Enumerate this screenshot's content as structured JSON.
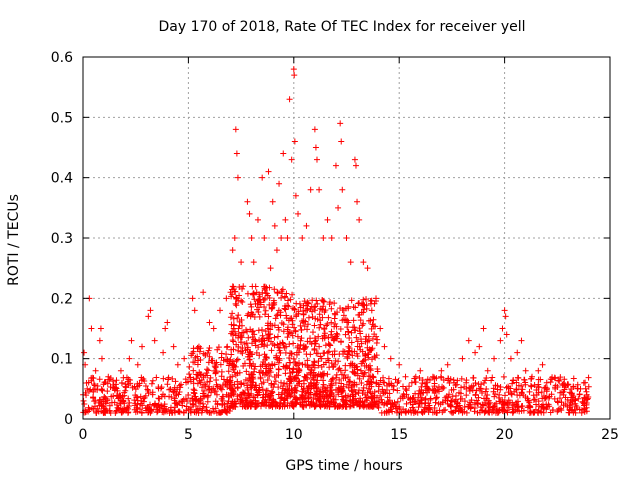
{
  "chart_data": {
    "type": "scatter",
    "title": "Day 170 of 2018, Rate Of TEC Index for receiver yell",
    "xlabel": "GPS time / hours",
    "ylabel": "ROTI / TECUs",
    "xlim": [
      0,
      25
    ],
    "ylim": [
      0,
      0.6
    ],
    "xticks": [
      0,
      5,
      10,
      15,
      20,
      25
    ],
    "xtick_labels": [
      "0",
      "5",
      "10",
      "15",
      "20",
      "25"
    ],
    "yticks": [
      0,
      0.1,
      0.2,
      0.3,
      0.4,
      0.5,
      0.6
    ],
    "ytick_labels": [
      "0",
      "0.1",
      "0.2",
      "0.3",
      "0.4",
      "0.5",
      "0.6"
    ],
    "grid": true,
    "marker": "plus",
    "series": [
      {
        "name": "ROTI",
        "color": "#ff0000",
        "points": [
          [
            0.05,
            0.11
          ],
          [
            0.1,
            0.09
          ],
          [
            0.2,
            0.05
          ],
          [
            0.3,
            0.2
          ],
          [
            0.4,
            0.15
          ],
          [
            0.6,
            0.08
          ],
          [
            0.8,
            0.13
          ],
          [
            0.85,
            0.15
          ],
          [
            0.9,
            0.1
          ],
          [
            1.2,
            0.07
          ],
          [
            1.5,
            0.05
          ],
          [
            1.8,
            0.08
          ],
          [
            2.2,
            0.1
          ],
          [
            2.3,
            0.13
          ],
          [
            2.6,
            0.09
          ],
          [
            2.8,
            0.12
          ],
          [
            3.1,
            0.17
          ],
          [
            3.2,
            0.18
          ],
          [
            3.4,
            0.13
          ],
          [
            3.8,
            0.11
          ],
          [
            3.9,
            0.15
          ],
          [
            4.0,
            0.16
          ],
          [
            4.3,
            0.12
          ],
          [
            4.5,
            0.09
          ],
          [
            4.8,
            0.1
          ],
          [
            5.2,
            0.2
          ],
          [
            5.3,
            0.18
          ],
          [
            5.5,
            0.12
          ],
          [
            5.7,
            0.21
          ],
          [
            6.0,
            0.16
          ],
          [
            6.2,
            0.15
          ],
          [
            6.5,
            0.18
          ],
          [
            6.8,
            0.2
          ],
          [
            7.0,
            0.21
          ],
          [
            7.1,
            0.28
          ],
          [
            7.2,
            0.3
          ],
          [
            7.25,
            0.48
          ],
          [
            7.3,
            0.44
          ],
          [
            7.35,
            0.4
          ],
          [
            7.5,
            0.26
          ],
          [
            7.6,
            0.22
          ],
          [
            7.8,
            0.36
          ],
          [
            7.9,
            0.34
          ],
          [
            8.0,
            0.3
          ],
          [
            8.1,
            0.26
          ],
          [
            8.3,
            0.33
          ],
          [
            8.5,
            0.4
          ],
          [
            8.6,
            0.3
          ],
          [
            8.8,
            0.41
          ],
          [
            8.9,
            0.25
          ],
          [
            9.0,
            0.36
          ],
          [
            9.1,
            0.32
          ],
          [
            9.2,
            0.28
          ],
          [
            9.3,
            0.39
          ],
          [
            9.4,
            0.3
          ],
          [
            9.5,
            0.44
          ],
          [
            9.6,
            0.33
          ],
          [
            9.7,
            0.3
          ],
          [
            9.8,
            0.53
          ],
          [
            9.9,
            0.43
          ],
          [
            10.0,
            0.58
          ],
          [
            10.02,
            0.57
          ],
          [
            10.05,
            0.46
          ],
          [
            10.1,
            0.37
          ],
          [
            10.2,
            0.34
          ],
          [
            10.4,
            0.3
          ],
          [
            10.6,
            0.32
          ],
          [
            10.8,
            0.38
          ],
          [
            11.0,
            0.48
          ],
          [
            11.05,
            0.45
          ],
          [
            11.1,
            0.43
          ],
          [
            11.2,
            0.38
          ],
          [
            11.4,
            0.3
          ],
          [
            11.6,
            0.33
          ],
          [
            11.8,
            0.3
          ],
          [
            12.0,
            0.42
          ],
          [
            12.1,
            0.35
          ],
          [
            12.2,
            0.49
          ],
          [
            12.25,
            0.46
          ],
          [
            12.3,
            0.38
          ],
          [
            12.5,
            0.3
          ],
          [
            12.7,
            0.26
          ],
          [
            12.9,
            0.43
          ],
          [
            12.95,
            0.42
          ],
          [
            13.0,
            0.36
          ],
          [
            13.1,
            0.33
          ],
          [
            13.3,
            0.26
          ],
          [
            13.5,
            0.25
          ],
          [
            13.7,
            0.18
          ],
          [
            13.9,
            0.2
          ],
          [
            14.1,
            0.15
          ],
          [
            14.3,
            0.12
          ],
          [
            14.6,
            0.1
          ],
          [
            15.0,
            0.09
          ],
          [
            15.3,
            0.07
          ],
          [
            15.6,
            0.06
          ],
          [
            16.0,
            0.08
          ],
          [
            16.3,
            0.06
          ],
          [
            16.6,
            0.07
          ],
          [
            17.0,
            0.08
          ],
          [
            17.3,
            0.09
          ],
          [
            17.6,
            0.06
          ],
          [
            18.0,
            0.1
          ],
          [
            18.3,
            0.13
          ],
          [
            18.6,
            0.11
          ],
          [
            18.8,
            0.12
          ],
          [
            19.0,
            0.15
          ],
          [
            19.2,
            0.08
          ],
          [
            19.5,
            0.1
          ],
          [
            19.8,
            0.13
          ],
          [
            19.9,
            0.15
          ],
          [
            20.0,
            0.18
          ],
          [
            20.05,
            0.17
          ],
          [
            20.1,
            0.14
          ],
          [
            20.3,
            0.1
          ],
          [
            20.6,
            0.11
          ],
          [
            20.8,
            0.13
          ],
          [
            21.0,
            0.08
          ],
          [
            21.3,
            0.07
          ],
          [
            21.6,
            0.08
          ],
          [
            21.8,
            0.09
          ],
          [
            22.0,
            0.06
          ],
          [
            22.4,
            0.05
          ],
          [
            22.8,
            0.04
          ],
          [
            23.2,
            0.04
          ],
          [
            23.6,
            0.05
          ],
          [
            23.9,
            0.04
          ]
        ]
      }
    ],
    "dense_band": [
      {
        "x0": 0.0,
        "x1": 5.0,
        "lo": 0.01,
        "hi": 0.07
      },
      {
        "x0": 5.0,
        "x1": 7.0,
        "lo": 0.01,
        "hi": 0.12
      },
      {
        "x0": 7.0,
        "x1": 10.0,
        "lo": 0.02,
        "hi": 0.22
      },
      {
        "x0": 10.0,
        "x1": 14.0,
        "lo": 0.02,
        "hi": 0.2
      },
      {
        "x0": 14.0,
        "x1": 24.0,
        "lo": 0.01,
        "hi": 0.07
      }
    ]
  }
}
